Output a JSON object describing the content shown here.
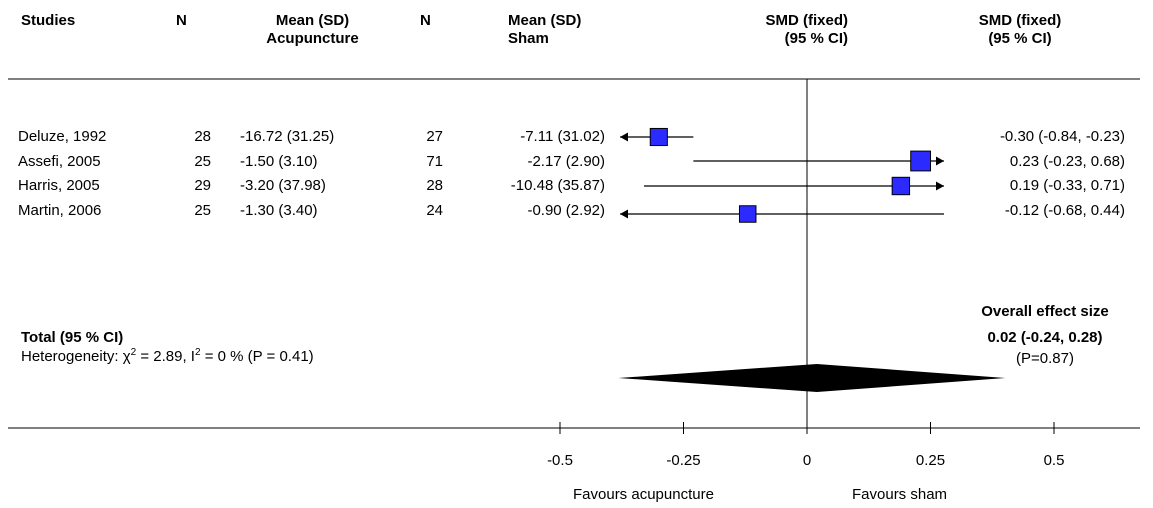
{
  "headers": {
    "studies": "Studies",
    "n1": "N",
    "mean1_line1": "Mean (SD)",
    "mean1_line2": "Acupuncture",
    "n2": "N",
    "mean2_line1": "Mean (SD)",
    "mean2_line2": "Sham",
    "smd_fixed_1_line1": "SMD (fixed)",
    "smd_fixed_1_line2": "(95 % CI)",
    "smd_fixed_2_line1": "SMD (fixed)",
    "smd_fixed_2_line2": "(95 % CI)"
  },
  "studies": [
    {
      "name": "Deluze, 1992",
      "n1": "28",
      "mean1": "-16.72 (31.25)",
      "n2": "27",
      "mean2": "-7.11 (31.02)",
      "ci_text": "-0.30 (-0.84, -0.23)"
    },
    {
      "name": "Assefi, 2005",
      "n1": "25",
      "mean1": "-1.50 (3.10)",
      "n2": "71",
      "mean2": "-2.17 (2.90)",
      "ci_text": "0.23 (-0.23, 0.68)"
    },
    {
      "name": "Harris, 2005",
      "n1": "29",
      "mean1": "-3.20 (37.98)",
      "n2": "28",
      "mean2": "-10.48 (35.87)",
      "ci_text": "0.19 (-0.33, 0.71)"
    },
    {
      "name": "Martin, 2006",
      "n1": "25",
      "mean1": "-1.30 (3.40)",
      "n2": "24",
      "mean2": "-0.90 (2.92)",
      "ci_text": "-0.12 (-0.68, 0.44)"
    }
  ],
  "total": {
    "label": "Total (95 % CI)",
    "heterogeneity_prefix": "Heterogeneity: χ",
    "chi_sup": "2",
    "heterogeneity_mid": " = 2.89, I",
    "i_sup": "2",
    "heterogeneity_suffix": " = 0 % (P = 0.41)",
    "overall_title": "Overall effect size",
    "overall_value": "0.02 (-0.24, 0.28)",
    "overall_p": "(P=0.87)"
  },
  "axis": {
    "ticks": [
      "-0.5",
      "-0.25",
      "0",
      "0.25",
      "0.5"
    ],
    "favours_left": "Favours acupuncture",
    "favours_right": "Favours sham"
  },
  "colors": {
    "square": "#2b2bff",
    "diamond": "#000000",
    "line": "#000000"
  },
  "chart_data": {
    "type": "forest",
    "measure": "SMD (fixed)",
    "xlim": [
      -0.5,
      0.5
    ],
    "x_ticks": [
      -0.5,
      -0.25,
      0,
      0.25,
      0.5
    ],
    "studies": [
      {
        "name": "Deluze, 1992",
        "est": -0.3,
        "lower": -0.84,
        "upper": -0.23,
        "weight": 0.85,
        "arrow_left": true,
        "arrow_right": false
      },
      {
        "name": "Assefi, 2005",
        "est": 0.23,
        "lower": -0.23,
        "upper": 0.68,
        "weight": 1.3,
        "arrow_left": false,
        "arrow_right": true
      },
      {
        "name": "Harris, 2005",
        "est": 0.19,
        "lower": -0.33,
        "upper": 0.71,
        "weight": 0.9,
        "arrow_left": false,
        "arrow_right": true
      },
      {
        "name": "Martin, 2006",
        "est": -0.12,
        "lower": -0.68,
        "upper": 0.44,
        "weight": 0.75,
        "arrow_left": true,
        "arrow_right": false
      }
    ],
    "overall": {
      "est": 0.02,
      "lower": -0.24,
      "upper": 0.28
    }
  }
}
